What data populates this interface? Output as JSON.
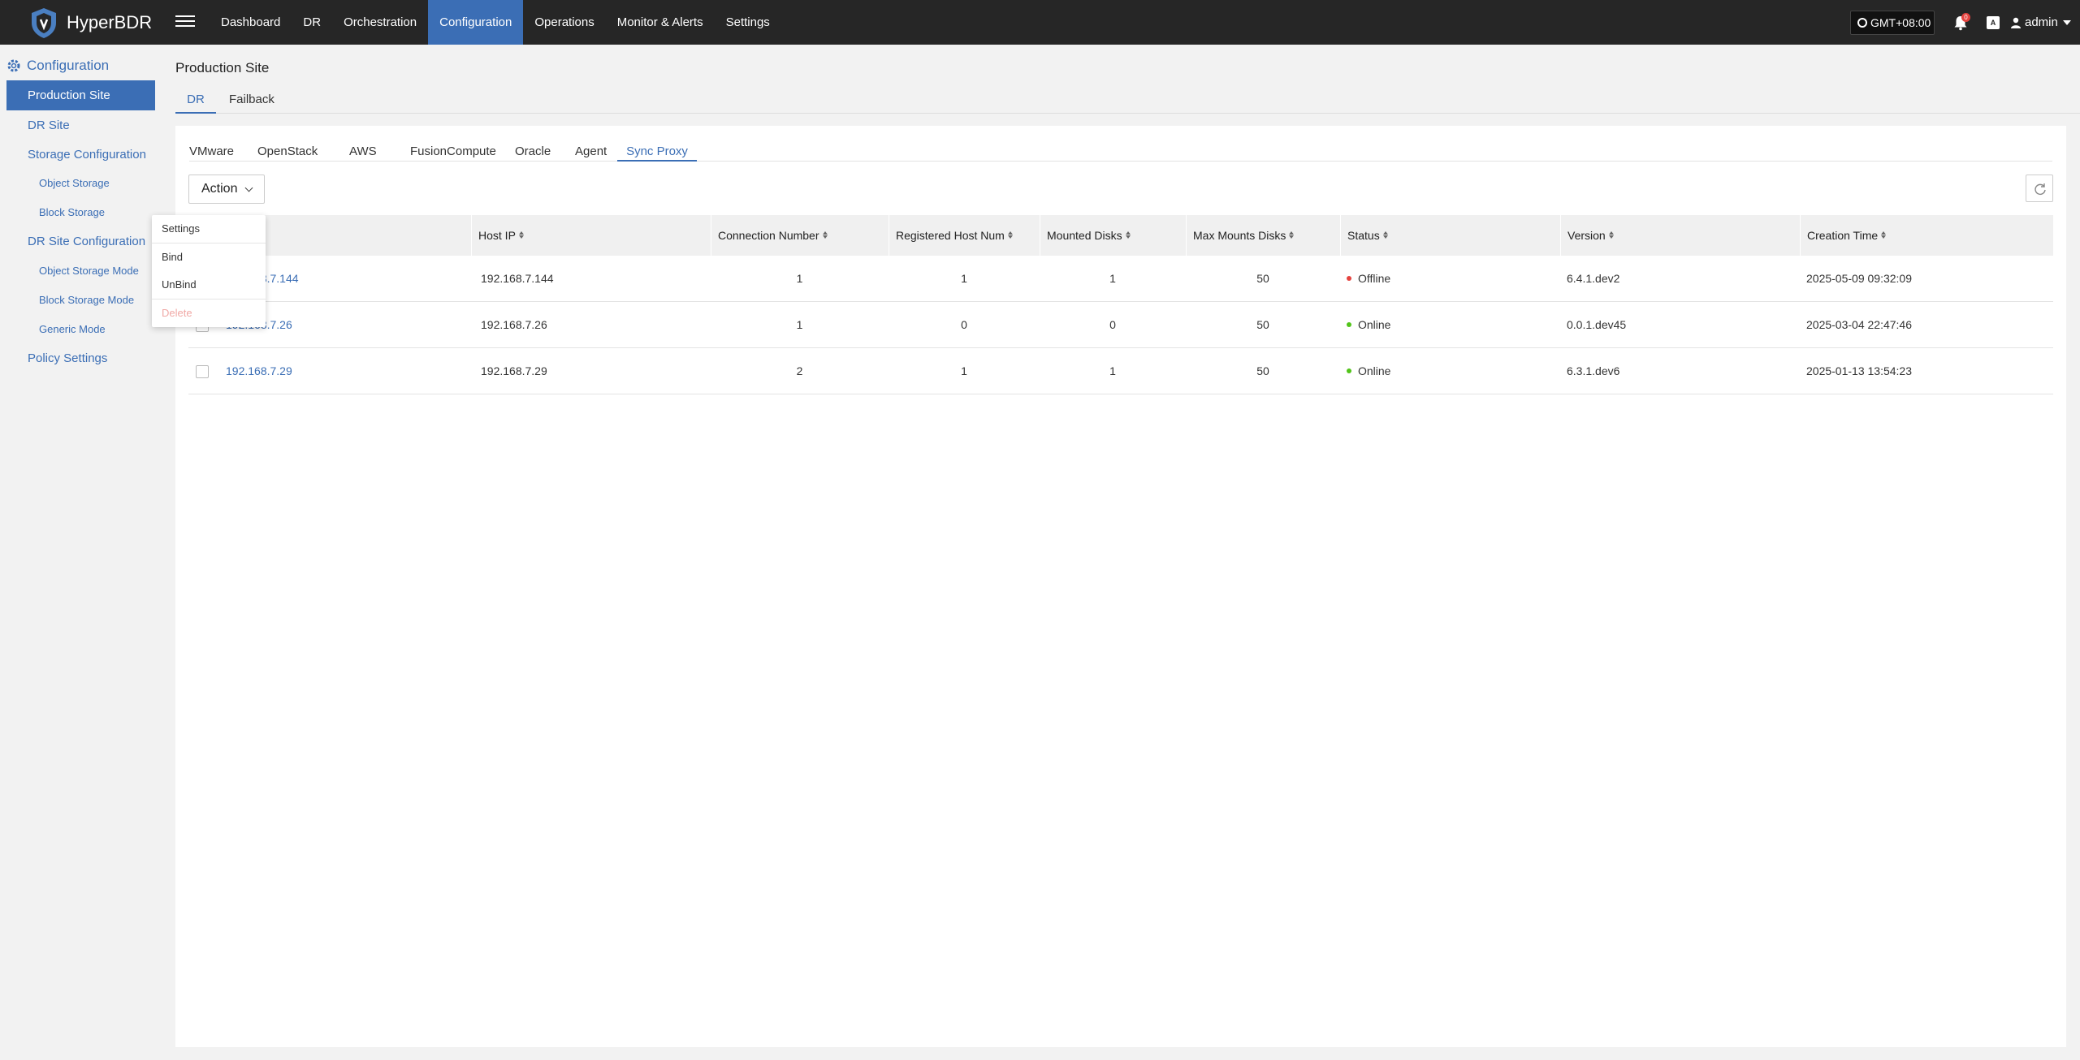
{
  "app": {
    "name": "HyperBDR"
  },
  "topnav": {
    "items": [
      "Dashboard",
      "DR",
      "Orchestration",
      "Configuration",
      "Operations",
      "Monitor & Alerts",
      "Settings"
    ],
    "active": "Configuration"
  },
  "header": {
    "timezone": "GMT+08:00",
    "notifications_badge": "0",
    "lang_icon": "A",
    "user": "admin"
  },
  "sidebar": {
    "title": "Configuration",
    "items": [
      {
        "label": "Production Site"
      },
      {
        "label": "DR Site"
      },
      {
        "label": "Storage Configuration"
      },
      {
        "label": "Object Storage"
      },
      {
        "label": "Block Storage"
      },
      {
        "label": "DR Site Configuration"
      },
      {
        "label": "Object Storage Mode"
      },
      {
        "label": "Block Storage Mode"
      },
      {
        "label": "Generic Mode"
      },
      {
        "label": "Policy Settings"
      }
    ]
  },
  "main": {
    "page_title": "Production Site",
    "tabs": [
      "DR",
      "Failback"
    ],
    "sub_tabs": [
      "VMware",
      "OpenStack",
      "AWS",
      "FusionCompute",
      "Oracle",
      "Agent",
      "Sync Proxy"
    ],
    "action_label": "Action",
    "dropdown": [
      "Settings",
      "Bind",
      "UnBind",
      "Delete"
    ],
    "table": {
      "columns": [
        "Host IP",
        "Connection Number",
        "Registered Host Num",
        "Mounted Disks",
        "Max Mounts Disks",
        "Status",
        "Version",
        "Creation Time"
      ],
      "rows": [
        {
          "name": "192.168.7.144",
          "host_ip": "192.168.7.144",
          "conn": "1",
          "reg": "1",
          "mounted": "1",
          "max": "50",
          "status": "Offline",
          "version": "6.4.1.dev2",
          "time": "2025-05-09 09:32:09"
        },
        {
          "name": "192.168.7.26",
          "host_ip": "192.168.7.26",
          "conn": "1",
          "reg": "0",
          "mounted": "0",
          "max": "50",
          "status": "Online",
          "version": "0.0.1.dev45",
          "time": "2025-03-04 22:47:46"
        },
        {
          "name": "192.168.7.29",
          "host_ip": "192.168.7.29",
          "conn": "2",
          "reg": "1",
          "mounted": "1",
          "max": "50",
          "status": "Online",
          "version": "6.3.1.dev6",
          "time": "2025-01-13 13:54:23"
        }
      ]
    }
  },
  "colors": {
    "accent": "#3b6eb5",
    "topbar": "#262626",
    "offline": "#e5433f",
    "online": "#52c41a"
  }
}
